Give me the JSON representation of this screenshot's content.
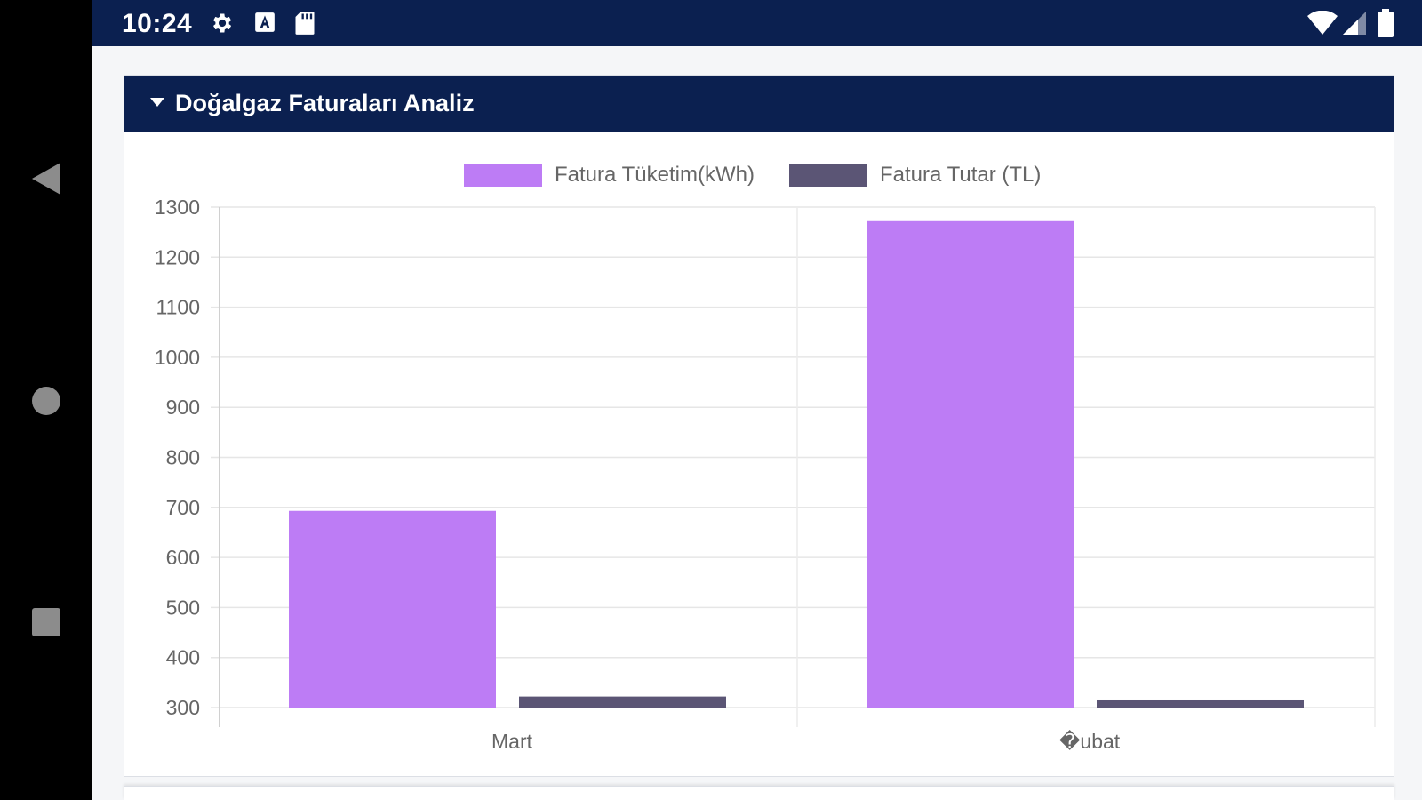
{
  "status_bar": {
    "time": "10:24",
    "icons": [
      "gear-icon",
      "a-icon",
      "sd-card-icon",
      "wifi-icon",
      "signal-icon",
      "battery-icon"
    ]
  },
  "nav_bar": {
    "icons": [
      "back-icon",
      "home-icon",
      "recents-icon"
    ]
  },
  "card": {
    "title": "Doğalgaz Faturaları Analiz"
  },
  "colors": {
    "header": "#0b2050",
    "series_consumption": "#bd7cf5",
    "series_amount": "#5b5575"
  },
  "chart_data": {
    "type": "bar",
    "categories": [
      "Mart",
      "�ubat"
    ],
    "series": [
      {
        "name": "Fatura Tüketim(kWh)",
        "values": [
          693,
          1272
        ]
      },
      {
        "name": "Fatura Tutar (TL)",
        "values": [
          322,
          316
        ]
      }
    ],
    "yticks": [
      1300,
      1200,
      1100,
      1000,
      900,
      800,
      700,
      600,
      500,
      400,
      300
    ],
    "ylim": [
      300,
      1300
    ],
    "legend_position": "top",
    "grid": true
  }
}
